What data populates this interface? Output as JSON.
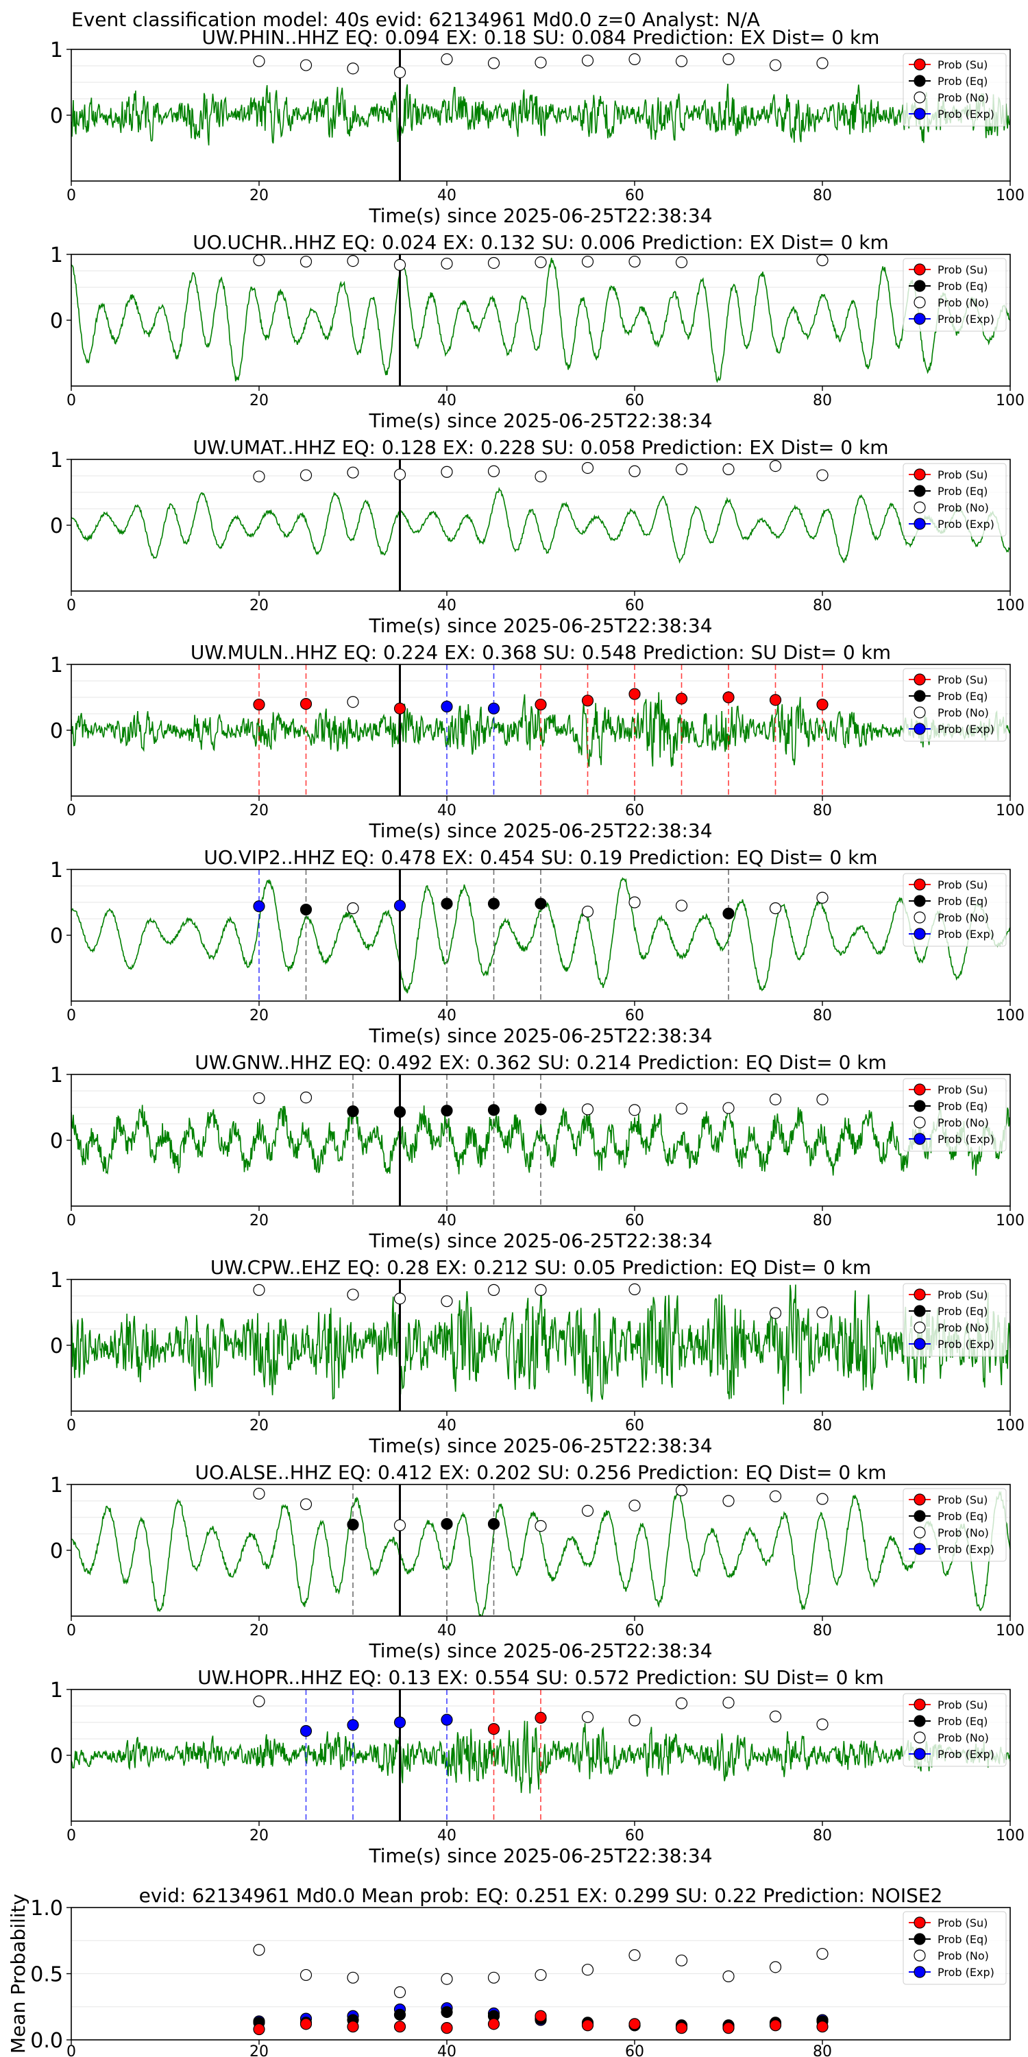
{
  "suptitle": "Event classification model: 40s evid: 62134961 Md0.0 z=0 Analyst: N/A",
  "legend_labels": [
    "Prob (Su)",
    "Prob (Eq)",
    "Prob (No)",
    "Prob (Exp)"
  ],
  "colors": {
    "su": "#ff0000",
    "eq": "#000000",
    "no": "#ffffff",
    "exp": "#0000ff",
    "waveform": "#008000",
    "pick_line": "#000000"
  },
  "chart_data": [
    {
      "type": "line",
      "title": "UW.PHIN..HHZ   EQ: 0.094  EX: 0.18  SU: 0.084   Prediction: EX    Dist= 0 km",
      "xlabel": "Time(s) since 2025-06-25T22:38:34",
      "xlim": [
        0,
        100
      ],
      "ylim": [
        -1,
        1
      ],
      "xticks": [
        "0",
        "20",
        "40",
        "60",
        "80",
        "100"
      ],
      "yticks": [
        "0",
        "1"
      ],
      "pick_time": 35,
      "markers": [
        {
          "x": 20,
          "y": 0.82,
          "class": "no"
        },
        {
          "x": 25,
          "y": 0.76,
          "class": "no"
        },
        {
          "x": 30,
          "y": 0.71,
          "class": "no"
        },
        {
          "x": 35,
          "y": 0.65,
          "class": "no"
        },
        {
          "x": 40,
          "y": 0.85,
          "class": "no"
        },
        {
          "x": 45,
          "y": 0.79,
          "class": "no"
        },
        {
          "x": 50,
          "y": 0.8,
          "class": "no"
        },
        {
          "x": 55,
          "y": 0.83,
          "class": "no"
        },
        {
          "x": 60,
          "y": 0.85,
          "class": "no"
        },
        {
          "x": 65,
          "y": 0.82,
          "class": "no"
        },
        {
          "x": 70,
          "y": 0.85,
          "class": "no"
        },
        {
          "x": 75,
          "y": 0.76,
          "class": "no"
        },
        {
          "x": 80,
          "y": 0.79,
          "class": "no"
        }
      ]
    },
    {
      "type": "line",
      "title": "UO.UCHR..HHZ   EQ: 0.024  EX: 0.132  SU: 0.006   Prediction: EX    Dist= 0 km",
      "xlabel": "Time(s) since 2025-06-25T22:38:34",
      "xlim": [
        0,
        100
      ],
      "ylim": [
        -1,
        1
      ],
      "xticks": [
        "0",
        "20",
        "40",
        "60",
        "80",
        "100"
      ],
      "yticks": [
        "0",
        "1"
      ],
      "pick_time": 35,
      "markers": [
        {
          "x": 20,
          "y": 0.91,
          "class": "no"
        },
        {
          "x": 25,
          "y": 0.89,
          "class": "no"
        },
        {
          "x": 30,
          "y": 0.9,
          "class": "no"
        },
        {
          "x": 35,
          "y": 0.84,
          "class": "no"
        },
        {
          "x": 40,
          "y": 0.86,
          "class": "no"
        },
        {
          "x": 45,
          "y": 0.87,
          "class": "no"
        },
        {
          "x": 50,
          "y": 0.88,
          "class": "no"
        },
        {
          "x": 55,
          "y": 0.89,
          "class": "no"
        },
        {
          "x": 60,
          "y": 0.89,
          "class": "no"
        },
        {
          "x": 65,
          "y": 0.88,
          "class": "no"
        },
        {
          "x": 80,
          "y": 0.91,
          "class": "no"
        }
      ]
    },
    {
      "type": "line",
      "title": "UW.UMAT..HHZ   EQ: 0.128  EX: 0.228  SU: 0.058   Prediction: EX    Dist= 0 km",
      "xlabel": "Time(s) since 2025-06-25T22:38:34",
      "xlim": [
        0,
        100
      ],
      "ylim": [
        -1,
        1
      ],
      "xticks": [
        "0",
        "20",
        "40",
        "60",
        "80",
        "100"
      ],
      "yticks": [
        "0",
        "1"
      ],
      "pick_time": 35,
      "markers": [
        {
          "x": 20,
          "y": 0.74,
          "class": "no"
        },
        {
          "x": 25,
          "y": 0.76,
          "class": "no"
        },
        {
          "x": 30,
          "y": 0.8,
          "class": "no"
        },
        {
          "x": 35,
          "y": 0.77,
          "class": "no"
        },
        {
          "x": 40,
          "y": 0.81,
          "class": "no"
        },
        {
          "x": 45,
          "y": 0.82,
          "class": "no"
        },
        {
          "x": 50,
          "y": 0.74,
          "class": "no"
        },
        {
          "x": 55,
          "y": 0.87,
          "class": "no"
        },
        {
          "x": 60,
          "y": 0.82,
          "class": "no"
        },
        {
          "x": 65,
          "y": 0.85,
          "class": "no"
        },
        {
          "x": 70,
          "y": 0.85,
          "class": "no"
        },
        {
          "x": 75,
          "y": 0.9,
          "class": "no"
        },
        {
          "x": 80,
          "y": 0.76,
          "class": "no"
        }
      ]
    },
    {
      "type": "line",
      "title": "UW.MULN..HHZ   EQ: 0.224  EX: 0.368  SU: 0.548   Prediction: SU    Dist= 0 km",
      "xlabel": "Time(s) since 2025-06-25T22:38:34",
      "xlim": [
        0,
        100
      ],
      "ylim": [
        -1,
        1
      ],
      "xticks": [
        "0",
        "20",
        "40",
        "60",
        "80",
        "100"
      ],
      "yticks": [
        "0",
        "1"
      ],
      "pick_time": 35,
      "markers": [
        {
          "x": 20,
          "y": 0.39,
          "class": "su"
        },
        {
          "x": 25,
          "y": 0.4,
          "class": "su"
        },
        {
          "x": 30,
          "y": 0.43,
          "class": "no"
        },
        {
          "x": 35,
          "y": 0.33,
          "class": "su"
        },
        {
          "x": 40,
          "y": 0.36,
          "class": "exp"
        },
        {
          "x": 45,
          "y": 0.33,
          "class": "exp"
        },
        {
          "x": 50,
          "y": 0.39,
          "class": "su"
        },
        {
          "x": 55,
          "y": 0.45,
          "class": "su"
        },
        {
          "x": 60,
          "y": 0.55,
          "class": "su"
        },
        {
          "x": 65,
          "y": 0.48,
          "class": "su"
        },
        {
          "x": 70,
          "y": 0.5,
          "class": "su"
        },
        {
          "x": 75,
          "y": 0.46,
          "class": "su"
        },
        {
          "x": 80,
          "y": 0.39,
          "class": "su"
        }
      ]
    },
    {
      "type": "line",
      "title": "UO.VIP2..HHZ   EQ: 0.478  EX: 0.454  SU: 0.19   Prediction: EQ    Dist= 0 km",
      "xlabel": "Time(s) since 2025-06-25T22:38:34",
      "xlim": [
        0,
        100
      ],
      "ylim": [
        -1,
        1
      ],
      "xticks": [
        "0",
        "20",
        "40",
        "60",
        "80",
        "100"
      ],
      "yticks": [
        "0",
        "1"
      ],
      "pick_time": 35,
      "markers": [
        {
          "x": 20,
          "y": 0.44,
          "class": "exp"
        },
        {
          "x": 25,
          "y": 0.39,
          "class": "eq"
        },
        {
          "x": 30,
          "y": 0.41,
          "class": "no"
        },
        {
          "x": 35,
          "y": 0.45,
          "class": "exp"
        },
        {
          "x": 40,
          "y": 0.48,
          "class": "eq"
        },
        {
          "x": 45,
          "y": 0.48,
          "class": "eq"
        },
        {
          "x": 50,
          "y": 0.48,
          "class": "eq"
        },
        {
          "x": 55,
          "y": 0.36,
          "class": "no"
        },
        {
          "x": 60,
          "y": 0.5,
          "class": "no"
        },
        {
          "x": 65,
          "y": 0.45,
          "class": "no"
        },
        {
          "x": 70,
          "y": 0.33,
          "class": "eq"
        },
        {
          "x": 75,
          "y": 0.41,
          "class": "no"
        },
        {
          "x": 80,
          "y": 0.57,
          "class": "no"
        }
      ]
    },
    {
      "type": "line",
      "title": "UW.GNW..HHZ   EQ: 0.492  EX: 0.362  SU: 0.214   Prediction: EQ    Dist= 0 km",
      "xlabel": "Time(s) since 2025-06-25T22:38:34",
      "xlim": [
        0,
        100
      ],
      "ylim": [
        -1,
        1
      ],
      "xticks": [
        "0",
        "20",
        "40",
        "60",
        "80",
        "100"
      ],
      "yticks": [
        "0",
        "1"
      ],
      "pick_time": 35,
      "markers": [
        {
          "x": 20,
          "y": 0.64,
          "class": "no"
        },
        {
          "x": 25,
          "y": 0.65,
          "class": "no"
        },
        {
          "x": 30,
          "y": 0.44,
          "class": "eq"
        },
        {
          "x": 35,
          "y": 0.43,
          "class": "eq"
        },
        {
          "x": 40,
          "y": 0.45,
          "class": "eq"
        },
        {
          "x": 45,
          "y": 0.46,
          "class": "eq"
        },
        {
          "x": 50,
          "y": 0.47,
          "class": "eq"
        },
        {
          "x": 55,
          "y": 0.47,
          "class": "no"
        },
        {
          "x": 60,
          "y": 0.46,
          "class": "no"
        },
        {
          "x": 65,
          "y": 0.48,
          "class": "no"
        },
        {
          "x": 70,
          "y": 0.49,
          "class": "no"
        },
        {
          "x": 75,
          "y": 0.62,
          "class": "no"
        },
        {
          "x": 80,
          "y": 0.62,
          "class": "no"
        }
      ]
    },
    {
      "type": "line",
      "title": "UW.CPW..EHZ   EQ: 0.28  EX: 0.212  SU: 0.05   Prediction: EQ    Dist= 0 km",
      "xlabel": "Time(s) since 2025-06-25T22:38:34",
      "xlim": [
        0,
        100
      ],
      "ylim": [
        -1,
        1
      ],
      "xticks": [
        "0",
        "20",
        "40",
        "60",
        "80",
        "100"
      ],
      "yticks": [
        "0",
        "1"
      ],
      "pick_time": 35,
      "markers": [
        {
          "x": 20,
          "y": 0.84,
          "class": "no"
        },
        {
          "x": 30,
          "y": 0.77,
          "class": "no"
        },
        {
          "x": 35,
          "y": 0.71,
          "class": "no"
        },
        {
          "x": 40,
          "y": 0.67,
          "class": "no"
        },
        {
          "x": 45,
          "y": 0.84,
          "class": "no"
        },
        {
          "x": 50,
          "y": 0.84,
          "class": "no"
        },
        {
          "x": 60,
          "y": 0.85,
          "class": "no"
        },
        {
          "x": 75,
          "y": 0.49,
          "class": "no"
        },
        {
          "x": 80,
          "y": 0.5,
          "class": "no"
        }
      ]
    },
    {
      "type": "line",
      "title": "UO.ALSE..HHZ   EQ: 0.412  EX: 0.202  SU: 0.256   Prediction: EQ    Dist= 0 km",
      "xlabel": "Time(s) since 2025-06-25T22:38:34",
      "xlim": [
        0,
        100
      ],
      "ylim": [
        -1,
        1
      ],
      "xticks": [
        "0",
        "20",
        "40",
        "60",
        "80",
        "100"
      ],
      "yticks": [
        "0",
        "1"
      ],
      "pick_time": 35,
      "markers": [
        {
          "x": 20,
          "y": 0.86,
          "class": "no"
        },
        {
          "x": 25,
          "y": 0.7,
          "class": "no"
        },
        {
          "x": 30,
          "y": 0.39,
          "class": "eq"
        },
        {
          "x": 35,
          "y": 0.38,
          "class": "no"
        },
        {
          "x": 40,
          "y": 0.4,
          "class": "eq"
        },
        {
          "x": 45,
          "y": 0.4,
          "class": "eq"
        },
        {
          "x": 50,
          "y": 0.37,
          "class": "no"
        },
        {
          "x": 55,
          "y": 0.6,
          "class": "no"
        },
        {
          "x": 60,
          "y": 0.68,
          "class": "no"
        },
        {
          "x": 65,
          "y": 0.91,
          "class": "no"
        },
        {
          "x": 70,
          "y": 0.75,
          "class": "no"
        },
        {
          "x": 75,
          "y": 0.82,
          "class": "no"
        },
        {
          "x": 80,
          "y": 0.78,
          "class": "no"
        }
      ]
    },
    {
      "type": "line",
      "title": "UW.HOPR..HHZ   EQ: 0.13  EX: 0.554  SU: 0.572   Prediction: SU    Dist= 0 km",
      "xlabel": "Time(s) since 2025-06-25T22:38:34",
      "xlim": [
        0,
        100
      ],
      "ylim": [
        -1,
        1
      ],
      "xticks": [
        "0",
        "20",
        "40",
        "60",
        "80",
        "100"
      ],
      "yticks": [
        "0",
        "1"
      ],
      "pick_time": 35,
      "markers": [
        {
          "x": 20,
          "y": 0.82,
          "class": "no"
        },
        {
          "x": 25,
          "y": 0.37,
          "class": "exp"
        },
        {
          "x": 30,
          "y": 0.46,
          "class": "exp"
        },
        {
          "x": 35,
          "y": 0.5,
          "class": "exp"
        },
        {
          "x": 40,
          "y": 0.54,
          "class": "exp"
        },
        {
          "x": 45,
          "y": 0.4,
          "class": "su"
        },
        {
          "x": 50,
          "y": 0.57,
          "class": "su"
        },
        {
          "x": 55,
          "y": 0.58,
          "class": "no"
        },
        {
          "x": 60,
          "y": 0.53,
          "class": "no"
        },
        {
          "x": 65,
          "y": 0.79,
          "class": "no"
        },
        {
          "x": 70,
          "y": 0.8,
          "class": "no"
        },
        {
          "x": 75,
          "y": 0.59,
          "class": "no"
        },
        {
          "x": 80,
          "y": 0.47,
          "class": "no"
        }
      ]
    },
    {
      "type": "scatter",
      "title": "evid: 62134961  Md0.0   Mean prob:    EQ: 0.251  EX: 0.299  SU: 0.22   Prediction: NOISE2",
      "xlabel": "",
      "ylabel": "Mean Probability",
      "xlim": [
        0,
        100
      ],
      "ylim": [
        0,
        1
      ],
      "xticks": [
        "0",
        "20",
        "40",
        "60",
        "80"
      ],
      "yticks": [
        "0.0",
        "0.5",
        "1.0"
      ],
      "x": [
        20,
        25,
        30,
        35,
        40,
        45,
        50,
        55,
        60,
        65,
        70,
        75,
        80
      ],
      "series": [
        {
          "name": "Prob (Su)",
          "class": "su",
          "values": [
            0.08,
            0.12,
            0.1,
            0.1,
            0.09,
            0.12,
            0.18,
            0.11,
            0.12,
            0.09,
            0.09,
            0.11,
            0.1
          ]
        },
        {
          "name": "Prob (Eq)",
          "class": "eq",
          "values": [
            0.13,
            0.13,
            0.15,
            0.19,
            0.21,
            0.18,
            0.16,
            0.13,
            0.11,
            0.11,
            0.11,
            0.13,
            0.14
          ]
        },
        {
          "name": "Prob (No)",
          "class": "no",
          "values": [
            0.68,
            0.49,
            0.47,
            0.36,
            0.46,
            0.47,
            0.49,
            0.53,
            0.64,
            0.6,
            0.48,
            0.55,
            0.65
          ]
        },
        {
          "name": "Prob (Exp)",
          "class": "exp",
          "values": [
            0.14,
            0.16,
            0.18,
            0.23,
            0.24,
            0.2,
            0.15,
            0.12,
            0.11,
            0.1,
            0.1,
            0.12,
            0.15
          ]
        }
      ]
    }
  ]
}
